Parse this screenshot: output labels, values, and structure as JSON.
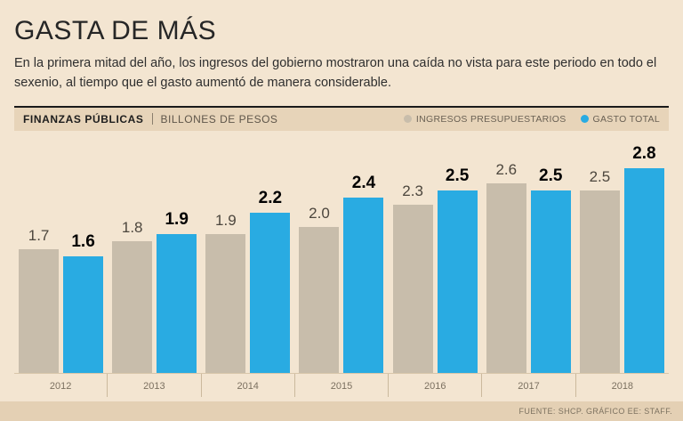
{
  "page": {
    "title": "GASTA DE MÁS",
    "subtitle": "En la primera mitad del año, los ingresos del gobierno mostraron una caída no vista para este periodo en todo el sexenio, al tiempo que el gasto aumentó de manera considerable.",
    "source_note": "FUENTE: SHCP. GRÁFICO EE: STAFF."
  },
  "header": {
    "section_label": "FINANZAS PÚBLICAS",
    "units_label": "BILLONES DE PESOS"
  },
  "colors": {
    "background": "#f3e5d1",
    "band_background": "#e7d4b9",
    "footer_background": "#e4d0b4",
    "ingresos_bar": "#c8bdab",
    "gasto_bar": "#29abe2"
  },
  "chart_data": {
    "type": "bar",
    "title": "GASTA DE MÁS",
    "ylabel": "BILLONES DE PESOS",
    "categories": [
      "2012",
      "2013",
      "2014",
      "2015",
      "2016",
      "2017",
      "2018"
    ],
    "series": [
      {
        "name": "INGRESOS PRESUPUESTARIOS",
        "color": "#c8bdab",
        "values": [
          1.7,
          1.8,
          1.9,
          2.0,
          2.3,
          2.6,
          2.5
        ]
      },
      {
        "name": "GASTO TOTAL",
        "color": "#29abe2",
        "values": [
          1.6,
          1.9,
          2.2,
          2.4,
          2.5,
          2.5,
          2.8
        ]
      }
    ],
    "ylim": [
      0,
      3
    ],
    "grid": false,
    "legend_position": "top-right",
    "value_labels": true
  }
}
